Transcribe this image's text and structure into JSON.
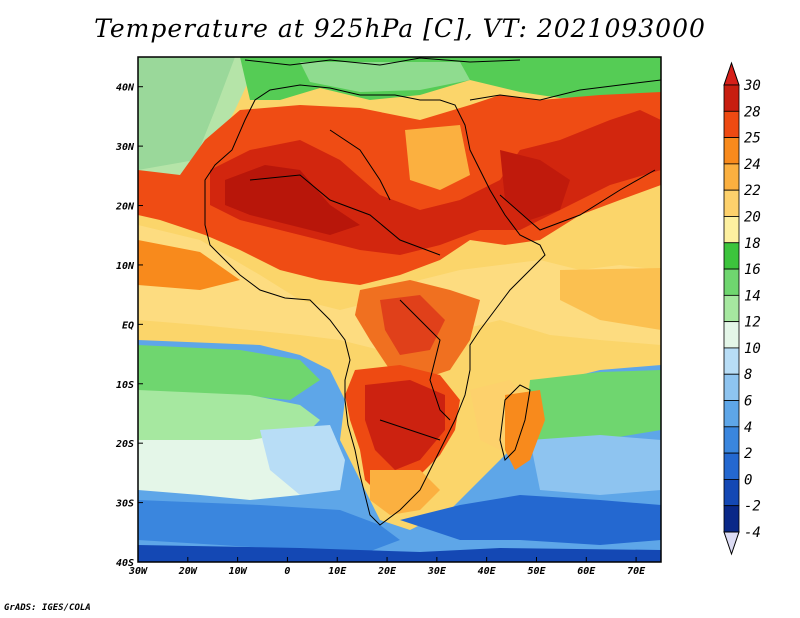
{
  "title": "Temperature at 925hPa [C], VT: 2021093000",
  "credit": "GrADS: IGES/COLA",
  "map": {
    "variable": "Temperature at 925hPa",
    "units": "C",
    "valid_time": "2021093000",
    "lon_range": [
      -30,
      75
    ],
    "lat_range": [
      -40,
      45
    ],
    "lat_ticks": [
      {
        "value": 40,
        "label": "40N"
      },
      {
        "value": 30,
        "label": "30N"
      },
      {
        "value": 20,
        "label": "20N"
      },
      {
        "value": 10,
        "label": "10N"
      },
      {
        "value": 0,
        "label": "EQ"
      },
      {
        "value": -10,
        "label": "10S"
      },
      {
        "value": -20,
        "label": "20S"
      },
      {
        "value": -30,
        "label": "30S"
      },
      {
        "value": -40,
        "label": "40S"
      }
    ],
    "lon_ticks": [
      {
        "value": -30,
        "label": "30W"
      },
      {
        "value": -20,
        "label": "20W"
      },
      {
        "value": -10,
        "label": "10W"
      },
      {
        "value": 0,
        "label": "0"
      },
      {
        "value": 10,
        "label": "10E"
      },
      {
        "value": 20,
        "label": "20E"
      },
      {
        "value": 30,
        "label": "30E"
      },
      {
        "value": 40,
        "label": "40E"
      },
      {
        "value": 50,
        "label": "50E"
      },
      {
        "value": 60,
        "label": "60E"
      },
      {
        "value": 70,
        "label": "70E"
      }
    ]
  },
  "colorbar": {
    "levels": [
      "30",
      "28",
      "25",
      "24",
      "22",
      "20",
      "18",
      "16",
      "14",
      "12",
      "10",
      "8",
      "6",
      "4",
      "2",
      "0",
      "-2",
      "-4"
    ],
    "colors": [
      "#c81e10",
      "#ee4a12",
      "#f88a1c",
      "#fbb040",
      "#fdd16c",
      "#fdf0a0",
      "#3cc43c",
      "#6fd66f",
      "#a6e8a0",
      "#e4f6e8",
      "#b8ddf6",
      "#8ec4f0",
      "#5ea6e8",
      "#3a86de",
      "#2468d0",
      "#1448b4",
      "#0a2888"
    ],
    "top_color": "#d6201a",
    "bottom_color": "#dcdcf4"
  }
}
